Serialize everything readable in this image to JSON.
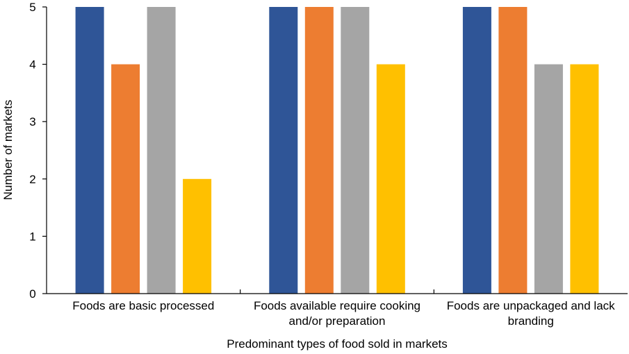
{
  "chart_data": {
    "type": "bar",
    "categories": [
      [
        "Foods are basic processed"
      ],
      [
        "Foods available require cooking",
        "and/or preparation"
      ],
      [
        "Foods are unpackaged and lack",
        "branding"
      ]
    ],
    "series": [
      {
        "values": [
          5,
          5,
          5
        ],
        "color": "#2f5597"
      },
      {
        "values": [
          4,
          5,
          5
        ],
        "color": "#ed7d31"
      },
      {
        "values": [
          5,
          5,
          4
        ],
        "color": "#a5a5a5"
      },
      {
        "values": [
          2,
          4,
          4
        ],
        "color": "#ffc000"
      }
    ],
    "xlabel": "Predominant types of food sold in markets",
    "ylabel": "Number of markets",
    "ylim": [
      0,
      5
    ],
    "yticks": [
      0,
      1,
      2,
      3,
      4,
      5
    ],
    "grid": false,
    "legend": "none"
  }
}
